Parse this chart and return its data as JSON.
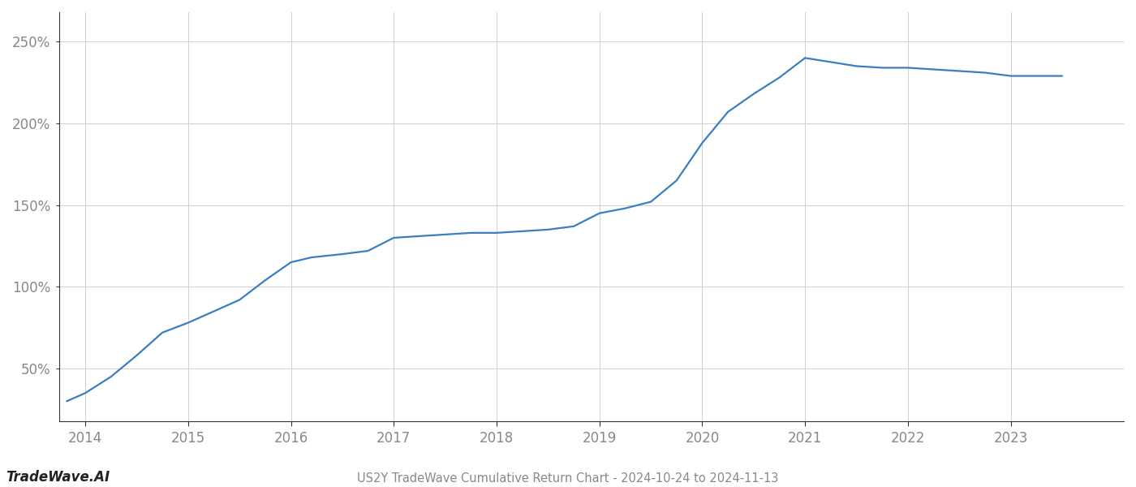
{
  "x_years": [
    2013.82,
    2014.0,
    2014.25,
    2014.5,
    2014.75,
    2015.0,
    2015.25,
    2015.5,
    2015.75,
    2016.0,
    2016.2,
    2016.5,
    2016.75,
    2017.0,
    2017.25,
    2017.5,
    2017.75,
    2018.0,
    2018.25,
    2018.5,
    2018.75,
    2019.0,
    2019.25,
    2019.5,
    2019.75,
    2020.0,
    2020.25,
    2020.5,
    2020.75,
    2021.0,
    2021.2,
    2021.5,
    2021.75,
    2022.0,
    2022.25,
    2022.5,
    2022.75,
    2023.0,
    2023.5
  ],
  "y_values": [
    30,
    35,
    45,
    58,
    72,
    78,
    85,
    92,
    104,
    115,
    118,
    120,
    122,
    130,
    131,
    132,
    133,
    133,
    134,
    135,
    137,
    145,
    148,
    152,
    165,
    188,
    207,
    218,
    228,
    240,
    238,
    235,
    234,
    234,
    233,
    232,
    231,
    229,
    229
  ],
  "line_color": "#3a7fc1",
  "line_width": 1.6,
  "background_color": "#ffffff",
  "grid_color": "#d0d0d0",
  "title": "US2Y TradeWave Cumulative Return Chart - 2024-10-24 to 2024-11-13",
  "watermark": "TradeWave.AI",
  "ytick_labels": [
    "50%",
    "100%",
    "150%",
    "200%",
    "250%"
  ],
  "ytick_values": [
    50,
    100,
    150,
    200,
    250
  ],
  "xtick_labels": [
    "2014",
    "2015",
    "2016",
    "2017",
    "2018",
    "2019",
    "2020",
    "2021",
    "2022",
    "2023"
  ],
  "xtick_values": [
    2014,
    2015,
    2016,
    2017,
    2018,
    2019,
    2020,
    2021,
    2022,
    2023
  ],
  "xlim": [
    2013.75,
    2024.1
  ],
  "ylim": [
    18,
    268
  ],
  "title_fontsize": 10.5,
  "watermark_fontsize": 12,
  "tick_fontsize": 12,
  "tick_color": "#888888",
  "spine_color": "#333333"
}
